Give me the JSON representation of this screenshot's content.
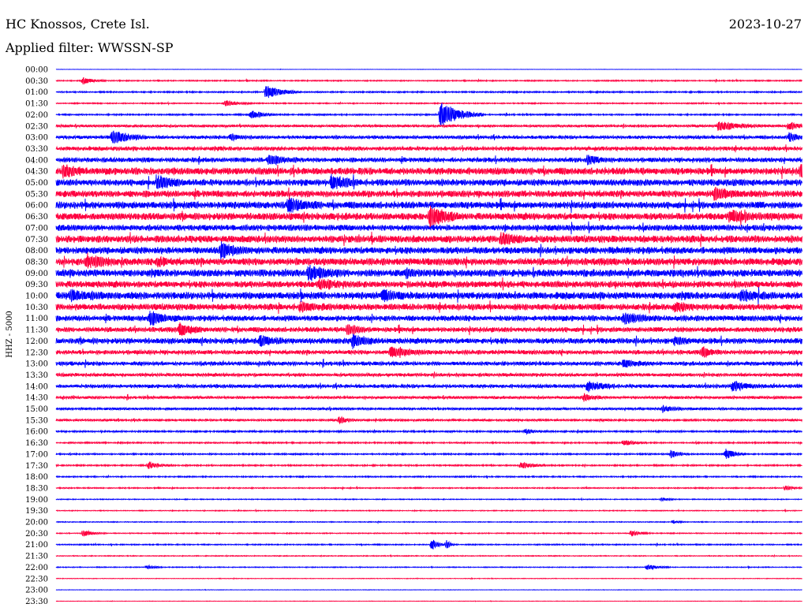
{
  "header": {
    "station": "HC Knossos, Crete Isl.",
    "date": "2023-10-27",
    "filter": "Applied filter: WWSSN-SP"
  },
  "chart_data": {
    "type": "line",
    "title": "HC Knossos, Crete Isl.",
    "ylabel": "HHZ - 5000",
    "tick_labels": [
      "00:00",
      "00:30",
      "01:00",
      "01:30",
      "02:00",
      "02:30",
      "03:00",
      "03:30",
      "04:00",
      "04:30",
      "05:00",
      "05:30",
      "06:00",
      "06:30",
      "07:00",
      "07:30",
      "08:00",
      "08:30",
      "09:00",
      "09:30",
      "10:00",
      "10:30",
      "11:00",
      "11:30",
      "12:00",
      "12:30",
      "13:00",
      "13:30",
      "14:00",
      "14:30",
      "15:00",
      "15:30",
      "16:00",
      "16:30",
      "17:00",
      "17:30",
      "18:00",
      "18:30",
      "19:00",
      "19:30",
      "20:00",
      "20:30",
      "21:00",
      "21:30",
      "22:00",
      "22:30",
      "23:00",
      "23:30"
    ],
    "row_colors": [
      "#0000ff",
      "#ff0040"
    ],
    "noise_level": [
      0.2,
      0.8,
      1.0,
      0.8,
      1.0,
      1.6,
      2.2,
      2.6,
      3.0,
      4.5,
      4.2,
      4.3,
      4.5,
      4.5,
      3.8,
      4.5,
      4.4,
      4.6,
      4.6,
      4.2,
      4.6,
      4.0,
      3.6,
      3.2,
      3.6,
      2.8,
      2.6,
      2.2,
      2.4,
      1.8,
      1.6,
      1.4,
      1.2,
      1.0,
      1.0,
      1.0,
      0.9,
      0.8,
      0.6,
      0.6,
      0.6,
      0.7,
      0.8,
      0.6,
      0.6,
      0.4,
      0.3,
      0.3
    ],
    "events": [
      {
        "row": 1,
        "x": 105,
        "amp": 4,
        "w": 12
      },
      {
        "row": 2,
        "x": 337,
        "amp": 9,
        "w": 18
      },
      {
        "row": 3,
        "x": 285,
        "amp": 4,
        "w": 14
      },
      {
        "row": 4,
        "x": 318,
        "amp": 6,
        "w": 14
      },
      {
        "row": 4,
        "x": 558,
        "amp": 16,
        "w": 22
      },
      {
        "row": 5,
        "x": 910,
        "amp": 6,
        "w": 24
      },
      {
        "row": 5,
        "x": 1000,
        "amp": 5,
        "w": 12
      },
      {
        "row": 6,
        "x": 142,
        "amp": 9,
        "w": 18
      },
      {
        "row": 6,
        "x": 292,
        "amp": 4,
        "w": 12
      },
      {
        "row": 6,
        "x": 1000,
        "amp": 5,
        "w": 10
      },
      {
        "row": 8,
        "x": 340,
        "amp": 6,
        "w": 16
      },
      {
        "row": 8,
        "x": 745,
        "amp": 6,
        "w": 12
      },
      {
        "row": 9,
        "x": 80,
        "amp": 7,
        "w": 14
      },
      {
        "row": 9,
        "x": 1015,
        "amp": 8,
        "w": 8
      },
      {
        "row": 10,
        "x": 200,
        "amp": 7,
        "w": 18
      },
      {
        "row": 10,
        "x": 420,
        "amp": 8,
        "w": 16
      },
      {
        "row": 11,
        "x": 905,
        "amp": 6,
        "w": 18
      },
      {
        "row": 12,
        "x": 365,
        "amp": 8,
        "w": 16
      },
      {
        "row": 13,
        "x": 545,
        "amp": 14,
        "w": 16
      },
      {
        "row": 13,
        "x": 925,
        "amp": 6,
        "w": 22
      },
      {
        "row": 15,
        "x": 635,
        "amp": 6,
        "w": 20
      },
      {
        "row": 16,
        "x": 280,
        "amp": 10,
        "w": 14
      },
      {
        "row": 17,
        "x": 110,
        "amp": 6,
        "w": 20
      },
      {
        "row": 17,
        "x": 200,
        "amp": 5,
        "w": 10
      },
      {
        "row": 18,
        "x": 390,
        "amp": 8,
        "w": 22
      },
      {
        "row": 18,
        "x": 515,
        "amp": 5,
        "w": 8
      },
      {
        "row": 19,
        "x": 405,
        "amp": 6,
        "w": 16
      },
      {
        "row": 20,
        "x": 90,
        "amp": 6,
        "w": 20
      },
      {
        "row": 20,
        "x": 485,
        "amp": 6,
        "w": 14
      },
      {
        "row": 20,
        "x": 940,
        "amp": 6,
        "w": 16
      },
      {
        "row": 21,
        "x": 380,
        "amp": 5,
        "w": 16
      },
      {
        "row": 21,
        "x": 855,
        "amp": 5,
        "w": 16
      },
      {
        "row": 22,
        "x": 190,
        "amp": 9,
        "w": 14
      },
      {
        "row": 22,
        "x": 790,
        "amp": 6,
        "w": 18
      },
      {
        "row": 23,
        "x": 228,
        "amp": 8,
        "w": 14
      },
      {
        "row": 23,
        "x": 440,
        "amp": 6,
        "w": 12
      },
      {
        "row": 24,
        "x": 330,
        "amp": 6,
        "w": 14
      },
      {
        "row": 24,
        "x": 447,
        "amp": 8,
        "w": 14
      },
      {
        "row": 24,
        "x": 855,
        "amp": 4,
        "w": 10
      },
      {
        "row": 25,
        "x": 495,
        "amp": 6,
        "w": 20
      },
      {
        "row": 25,
        "x": 890,
        "amp": 7,
        "w": 10
      },
      {
        "row": 26,
        "x": 790,
        "amp": 5,
        "w": 12
      },
      {
        "row": 28,
        "x": 745,
        "amp": 7,
        "w": 14
      },
      {
        "row": 28,
        "x": 928,
        "amp": 7,
        "w": 14
      },
      {
        "row": 29,
        "x": 740,
        "amp": 4,
        "w": 10
      },
      {
        "row": 30,
        "x": 840,
        "amp": 4,
        "w": 14
      },
      {
        "row": 31,
        "x": 430,
        "amp": 4,
        "w": 10
      },
      {
        "row": 32,
        "x": 665,
        "amp": 3,
        "w": 12
      },
      {
        "row": 33,
        "x": 790,
        "amp": 4,
        "w": 12
      },
      {
        "row": 34,
        "x": 850,
        "amp": 5,
        "w": 10
      },
      {
        "row": 34,
        "x": 920,
        "amp": 7,
        "w": 10
      },
      {
        "row": 35,
        "x": 188,
        "amp": 4,
        "w": 14
      },
      {
        "row": 35,
        "x": 660,
        "amp": 4,
        "w": 16
      },
      {
        "row": 37,
        "x": 995,
        "amp": 3,
        "w": 10
      },
      {
        "row": 38,
        "x": 838,
        "amp": 2,
        "w": 10
      },
      {
        "row": 40,
        "x": 853,
        "amp": 2,
        "w": 8
      },
      {
        "row": 41,
        "x": 105,
        "amp": 4,
        "w": 12
      },
      {
        "row": 41,
        "x": 800,
        "amp": 4,
        "w": 10
      },
      {
        "row": 42,
        "x": 547,
        "amp": 7,
        "w": 8
      },
      {
        "row": 42,
        "x": 566,
        "amp": 7,
        "w": 4
      },
      {
        "row": 44,
        "x": 186,
        "amp": 3,
        "w": 8
      },
      {
        "row": 44,
        "x": 820,
        "amp": 4,
        "w": 12
      }
    ]
  }
}
